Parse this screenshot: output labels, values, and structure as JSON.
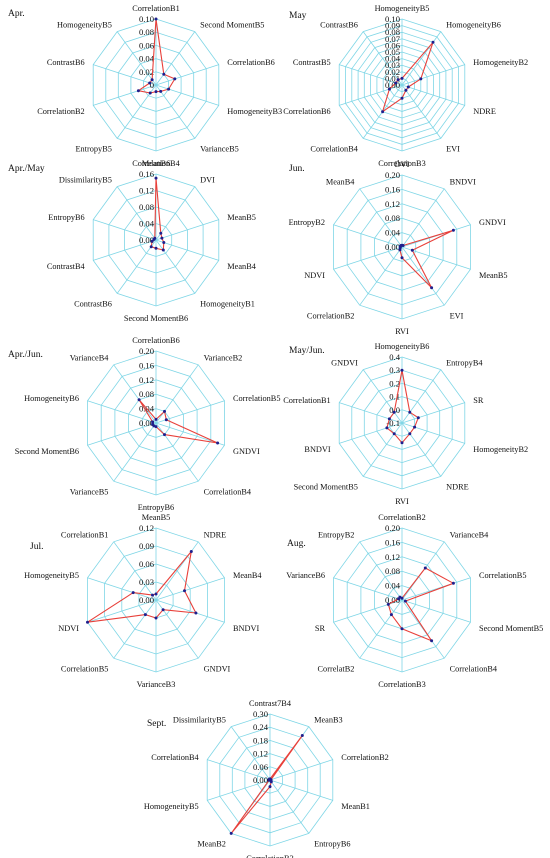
{
  "chart_data": [
    {
      "type": "radar",
      "title": "Apr.",
      "axes": [
        "CorrelationB1",
        "Second MomentB5",
        "CorrelationB6",
        "HomogeneityB3",
        "VarianceB5",
        "CorrelationB4",
        "EntropyB5",
        "CorrelationB2",
        "ContrastB6",
        "HomogeneityB5"
      ],
      "ticks": [
        "0.10",
        "0.08",
        "0.06",
        "0.04",
        "0.02",
        "0"
      ],
      "rmax": 0.1,
      "values": [
        0.1,
        0.02,
        0.03,
        0.02,
        0.012,
        0.01,
        0.015,
        0.028,
        0.01,
        0.01
      ]
    },
    {
      "type": "radar",
      "title": "May",
      "axes": [
        "HomogeneityB5",
        "HomogeneityB6",
        "HomogeneityB2",
        "NDRE",
        "EVI",
        "CorrelationB3",
        "CorrelationB4",
        "CorrelationB6",
        "ContrastB5",
        "ContrastB6"
      ],
      "ticks": [
        "0.10",
        "0.09",
        "0.08",
        "0.07",
        "0.06",
        "0.05",
        "0.04",
        "0.03",
        "0.02",
        "0.01",
        "0.00"
      ],
      "rmax": 0.1,
      "values": [
        0.01,
        0.08,
        0.03,
        0.01,
        0.01,
        0.02,
        0.05,
        0.02,
        0.01,
        0.01
      ]
    },
    {
      "type": "radar",
      "title": "Apr./May",
      "axes": [
        "MeanB6",
        "DVI",
        "MeanB5",
        "MeanB4",
        "HomogeneityB1",
        "Second MomentB6",
        "ContrastB6",
        "ContrastB4",
        "EntropyB6",
        "DissimilarityB5"
      ],
      "ticks": [
        "0.16",
        "0.12",
        "0.08",
        "0.04",
        "0.00"
      ],
      "rmax": 0.16,
      "values": [
        0.15,
        0.02,
        0.015,
        0.02,
        0.03,
        0.02,
        0.02,
        0.01,
        0.005,
        0.005
      ]
    },
    {
      "type": "radar",
      "title": "Jun.",
      "axes": [
        "DVI",
        "BNDVI",
        "GNDVI",
        "MeanB5",
        "EVI",
        "RVI",
        "CorrelationB2",
        "NDVI",
        "EntropyB2",
        "MeanB4"
      ],
      "ticks": [
        "0.20",
        "0.16",
        "0.12",
        "0.08",
        "0.04",
        "0.00"
      ],
      "rmax": 0.2,
      "values": [
        0.005,
        0.005,
        0.15,
        0.03,
        0.14,
        0.03,
        0.01,
        0.005,
        0.005,
        0.005
      ]
    },
    {
      "type": "radar",
      "title": "Apr./Jun.",
      "axes": [
        "CorrelationB6",
        "VarianceB2",
        "CorrelationB5",
        "GNDVI",
        "CorrelationB4",
        "EntropyB6",
        "VarianceB5",
        "Second MomentB6",
        "HomogeneityB6",
        "VarianceB4"
      ],
      "ticks": [
        "0.20",
        "0.16",
        "0.12",
        "0.08",
        "0.04",
        "0.00"
      ],
      "rmax": 0.2,
      "values": [
        0.01,
        0.04,
        0.03,
        0.18,
        0.04,
        0.01,
        0.01,
        0.01,
        0.01,
        0.08
      ]
    },
    {
      "type": "radar",
      "title": "May/Jun.",
      "axes": [
        "HomogeneityB6",
        "EntropyB4",
        "SR",
        "HomogeneityB2",
        "NDRE",
        "RVI",
        "Second MomentB5",
        "BNDVI",
        "CorrelationB1",
        "GNDVI"
      ],
      "ticks": [
        "0.4",
        "0.3",
        "0.2",
        "0.1",
        "0.0",
        "-0.1"
      ],
      "rmin": -0.1,
      "rmax": 0.4,
      "values": [
        0.3,
        0.0,
        0.03,
        0.0,
        0.0,
        0.05,
        0.0,
        0.02,
        0.0,
        0.0
      ]
    },
    {
      "type": "radar",
      "title": "Jul.",
      "axes": [
        "MeanB5",
        "NDRE",
        "MeanB4",
        "BNDVI",
        "GNDVI",
        "VarianceB3",
        "CorrelationB5",
        "NDVI",
        "HomogeneityB5",
        "CorrelationB1"
      ],
      "ticks": [
        "0.12",
        "0.09",
        "0.06",
        "0.03",
        "0.00"
      ],
      "rmax": 0.12,
      "values": [
        0.01,
        0.1,
        0.05,
        0.07,
        0.02,
        0.03,
        0.03,
        0.12,
        0.04,
        0.01
      ]
    },
    {
      "type": "radar",
      "title": "Aug.",
      "axes": [
        "CorrelationB2",
        "VarianceB4",
        "CorrelationB5",
        "Second MomentB5",
        "CorrelationB4",
        "CorrelationB3",
        "CorrelatB2",
        "SR",
        "VarianceB6",
        "EntropyB2"
      ],
      "ticks": [
        "0.20",
        "0.16",
        "0.12",
        "0.08",
        "0.04",
        "0.00"
      ],
      "rmax": 0.2,
      "values": [
        0.005,
        0.11,
        0.15,
        0.01,
        0.14,
        0.08,
        0.05,
        0.04,
        0.01,
        0.01
      ]
    },
    {
      "type": "radar",
      "title": "Sept.",
      "axes": [
        "Contrast7B4",
        "MeanB3",
        "CorrelationB2",
        "MeanB1",
        "EntropyB6",
        "CorrelationB3",
        "MeanB2",
        "HomogeneityB5",
        "CorrelationB4",
        "DissimilarityB5"
      ],
      "ticks": [
        "0.30",
        "0.24",
        "0.18",
        "0.12",
        "0.06",
        "0.00"
      ],
      "rmax": 0.3,
      "values": [
        0.005,
        0.25,
        0.005,
        0.005,
        0.01,
        0.03,
        0.33,
        0.005,
        0.005,
        0.005
      ]
    }
  ]
}
